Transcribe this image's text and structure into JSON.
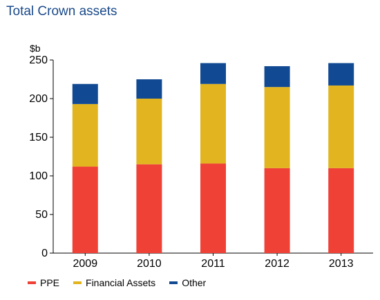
{
  "chart_data": {
    "type": "bar",
    "stacked": true,
    "title": "Total Crown assets",
    "ylabel": "$b",
    "xlabel": "",
    "categories": [
      "2009",
      "2010",
      "2011",
      "2012",
      "2013"
    ],
    "ylim": [
      0,
      250
    ],
    "yticks": [
      0,
      50,
      100,
      150,
      200,
      250
    ],
    "grid": false,
    "legend_position": "bottom",
    "series": [
      {
        "name": "PPE",
        "color": "#ef4136",
        "values": [
          112,
          115,
          116,
          110,
          110
        ]
      },
      {
        "name": "Financial Assets",
        "color": "#e2b520",
        "values": [
          81,
          85,
          103,
          105,
          107
        ]
      },
      {
        "name": "Other",
        "color": "#114a93",
        "values": [
          26,
          25,
          27,
          27,
          29
        ]
      }
    ]
  }
}
